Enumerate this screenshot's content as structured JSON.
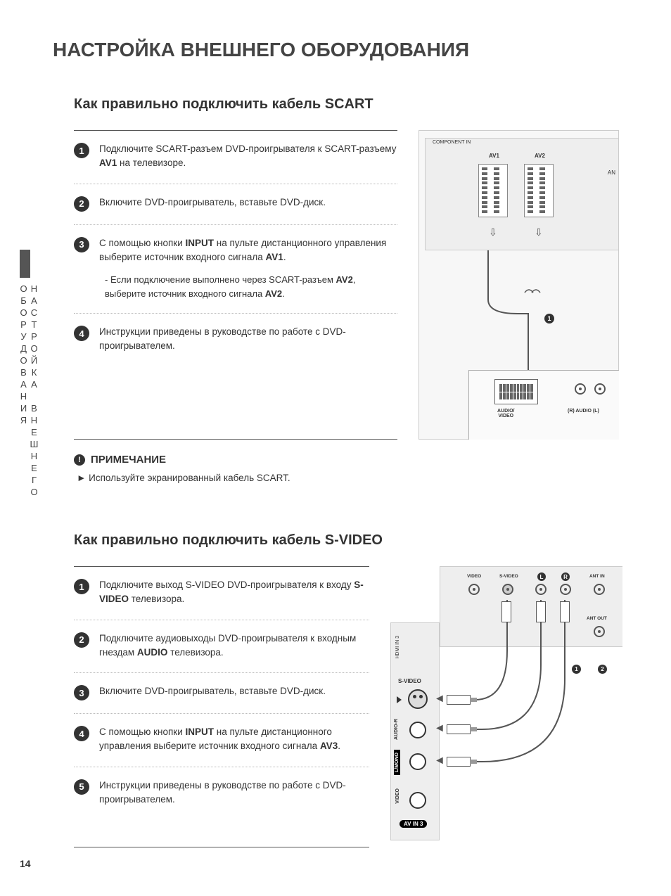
{
  "page_number": "14",
  "side_tab": "НАСТРОЙКА ВНЕШНЕГО ОБОРУДОВАНИЯ",
  "main_title": "НАСТРОЙКА ВНЕШНЕГО ОБОРУДОВАНИЯ",
  "scart": {
    "title": "Как правильно подключить кабель SCART",
    "steps": {
      "s1": "Подключите SCART-разъем DVD-проигрывателя к SCART-разъему ",
      "s1b": "AV1",
      "s1c": " на телевизоре.",
      "s2": "Включите DVD-проигрыватель, вставьте DVD-диск.",
      "s3a": "С помощью кнопки ",
      "s3b": "INPUT",
      "s3c": " на пульте дистанционного управления выберите источник входного сигнала ",
      "s3d": "AV1",
      "s3e": ".",
      "s3suba": "- Если подключение выполнено через SCART-разъем ",
      "s3subb": "AV2",
      "s3subc": ", выберите источник входного сигнала ",
      "s3subd": "AV2",
      "s3sube": ".",
      "s4": "Инструкции приведены в руководстве по работе с DVD-проигрывателем."
    },
    "note_title": "ПРИМЕЧАНИЕ",
    "note_text": "► Используйте экранированный кабель SCART.",
    "diagram": {
      "component_in": "COMPONENT IN",
      "av1": "AV1",
      "av2": "AV2",
      "ant": "AN",
      "audio_video": "AUDIO/\nVIDEO",
      "r_audio_l": "(R) AUDIO (L)",
      "badge1": "1"
    }
  },
  "svideo": {
    "title": "Как правильно подключить кабель S-VIDEO",
    "steps": {
      "s1a": "Подключите выход S-VIDEO DVD-проигрывателя к входу ",
      "s1b": "S-VIDEO",
      "s1c": " телевизора.",
      "s2a": "Подключите аудиовыходы DVD-проигрывателя к входным гнездам ",
      "s2b": "AUDIO",
      "s2c": " телевизора.",
      "s3": "Включите DVD-проигрыватель, вставьте DVD-диск.",
      "s4a": "С помощью кнопки ",
      "s4b": "INPUT",
      "s4c": " на пульте дистанционного управления выберите источник входного сигнала ",
      "s4d": "AV3",
      "s4e": ".",
      "s5": "Инструкции приведены в руководстве по работе с DVD-проигрывателем."
    },
    "diagram": {
      "video": "VIDEO",
      "svideo": "S-VIDEO",
      "l": "L",
      "r": "R",
      "ant_in": "ANT IN",
      "ant_out": "ANT OUT",
      "hdmi": "HDMI IN 3",
      "svideo_side": "S-VIDEO",
      "audio_r": "AUDIO-R",
      "lmono": "L/MONO",
      "video_side": "VIDEO",
      "avin3": "AV IN 3",
      "badge1": "1",
      "badge2": "2"
    }
  }
}
